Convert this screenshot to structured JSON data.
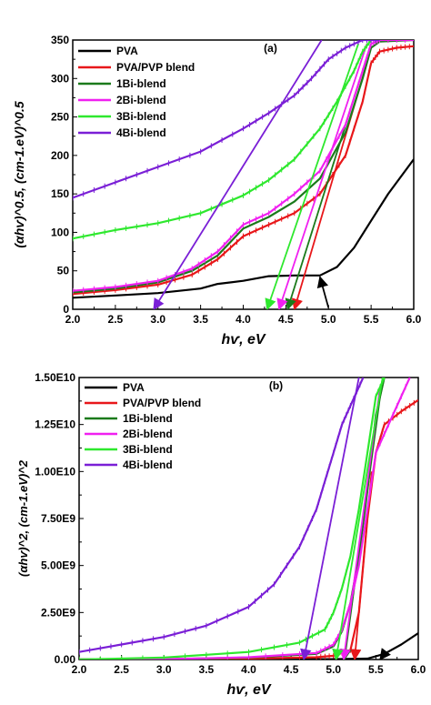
{
  "chart_data": [
    {
      "type": "line",
      "panel_label": "(a)",
      "xlabel": "hѵ, eV",
      "ylabel": "(αhѵ)^0.5, (cm-1.eV)^0.5",
      "xlim": [
        2.0,
        6.0
      ],
      "ylim": [
        0,
        350
      ],
      "xticks": [
        "2.0",
        "2.5",
        "3.0",
        "3.5",
        "4.0",
        "4.5",
        "5.0",
        "5.5",
        "6.0"
      ],
      "yticks": [
        "0",
        "50",
        "100",
        "150",
        "200",
        "250",
        "300",
        "350"
      ],
      "legend_position": "top-left",
      "series": [
        {
          "name": "PVA",
          "color": "#000000",
          "marker": "none",
          "x": [
            2.0,
            2.5,
            3.0,
            3.5,
            3.7,
            4.0,
            4.3,
            4.6,
            4.9,
            5.1,
            5.3,
            5.5,
            5.7,
            6.0
          ],
          "y": [
            15,
            18,
            21,
            27,
            33,
            37,
            43,
            44,
            44,
            55,
            80,
            115,
            150,
            195
          ],
          "fit_x": [
            4.9,
            5.0
          ],
          "fit_y": [
            42,
            2
          ]
        },
        {
          "name": "PVA/PVP blend",
          "color": "#e8171a",
          "marker": "dash",
          "x": [
            2.0,
            2.5,
            3.0,
            3.4,
            3.7,
            4.0,
            4.3,
            4.6,
            4.9,
            5.2,
            5.4,
            5.5,
            5.6,
            5.8,
            6.0
          ],
          "y": [
            20,
            25,
            32,
            45,
            65,
            95,
            110,
            125,
            150,
            200,
            270,
            320,
            335,
            340,
            342
          ],
          "fit_x": [
            4.6,
            5.45
          ],
          "fit_y": [
            0,
            320
          ]
        },
        {
          "name": "1Bi-blend",
          "color": "#1b7a1b",
          "marker": "none",
          "x": [
            2.0,
            2.5,
            3.0,
            3.4,
            3.7,
            4.0,
            4.3,
            4.6,
            4.9,
            5.2,
            5.4,
            5.5,
            5.6,
            6.0
          ],
          "y": [
            22,
            27,
            35,
            50,
            70,
            105,
            120,
            140,
            170,
            230,
            300,
            340,
            348,
            350
          ],
          "fit_x": [
            4.52,
            5.5
          ],
          "fit_y": [
            0,
            345
          ]
        },
        {
          "name": "2Bi-blend",
          "color": "#f020f0",
          "marker": "dash",
          "x": [
            2.0,
            2.5,
            3.0,
            3.4,
            3.7,
            4.0,
            4.3,
            4.6,
            4.9,
            5.2,
            5.4,
            5.5,
            5.6,
            6.0
          ],
          "y": [
            24,
            29,
            37,
            53,
            75,
            110,
            125,
            150,
            180,
            240,
            310,
            345,
            350,
            350
          ],
          "fit_x": [
            4.42,
            5.45
          ],
          "fit_y": [
            0,
            345
          ]
        },
        {
          "name": "3Bi-blend",
          "color": "#2ee82e",
          "marker": "dash",
          "x": [
            2.0,
            2.5,
            3.0,
            3.5,
            4.0,
            4.3,
            4.6,
            4.9,
            5.1,
            5.3,
            5.4,
            5.5
          ],
          "y": [
            92,
            103,
            112,
            125,
            148,
            168,
            195,
            235,
            270,
            310,
            335,
            350
          ],
          "fit_x": [
            4.28,
            5.35
          ],
          "fit_y": [
            0,
            345
          ]
        },
        {
          "name": "4Bi-blend",
          "color": "#7a1fd6",
          "marker": "dash",
          "x": [
            2.0,
            2.5,
            3.0,
            3.5,
            4.0,
            4.3,
            4.6,
            4.8,
            5.0,
            5.2,
            5.4,
            5.6
          ],
          "y": [
            145,
            165,
            185,
            205,
            235,
            255,
            278,
            300,
            325,
            340,
            350,
            350
          ],
          "fit_x": [
            2.95,
            4.92
          ],
          "fit_y": [
            0,
            350
          ]
        }
      ]
    },
    {
      "type": "line",
      "panel_label": "(b)",
      "xlabel": "hѵ, eV",
      "ylabel": "(αhѵ)^2, (cm-1.eV)^2",
      "xlim": [
        2.0,
        6.0
      ],
      "ylim": [
        0,
        15000000000.0
      ],
      "xticks": [
        "2.0",
        "2.5",
        "3.0",
        "3.5",
        "4.0",
        "4.5",
        "5.0",
        "5.5",
        "6.0"
      ],
      "yticks": [
        "0.00",
        "2.50E9",
        "5.00E9",
        "7.50E9",
        "1.00E10",
        "1.25E10",
        "1.50E10"
      ],
      "legend_position": "top-left",
      "series": [
        {
          "name": "PVA",
          "color": "#000000",
          "marker": "none",
          "x": [
            2.0,
            3.0,
            4.0,
            5.0,
            5.4,
            5.6,
            5.8,
            6.0
          ],
          "y": [
            0,
            0,
            5000000.0,
            20000000.0,
            50000000.0,
            300000000.0,
            800000000.0,
            1400000000.0
          ],
          "fit_x": [
            5.55,
            5.6
          ],
          "fit_y": [
            0,
            300000000.0
          ]
        },
        {
          "name": "PVA/PVP blend",
          "color": "#e8171a",
          "marker": "dash",
          "x": [
            2.0,
            3.0,
            4.0,
            4.8,
            5.0,
            5.2,
            5.3,
            5.4,
            5.5,
            5.6,
            5.8,
            6.0
          ],
          "y": [
            0,
            10000000.0,
            50000000.0,
            120000000.0,
            200000000.0,
            500000000.0,
            2500000000.0,
            7500000000.0,
            11000000000.0,
            12500000000.0,
            13200000000.0,
            13800000000.0
          ],
          "fit_x": [
            5.25,
            5.45
          ],
          "fit_y": [
            0,
            10000000000.0
          ]
        },
        {
          "name": "1Bi-blend",
          "color": "#1b7a1b",
          "marker": "none",
          "x": [
            2.0,
            3.0,
            4.0,
            4.8,
            5.0,
            5.1,
            5.2,
            5.3,
            5.4,
            5.5,
            5.6
          ],
          "y": [
            0,
            20000000.0,
            100000000.0,
            300000000.0,
            700000000.0,
            1500000000.0,
            3000000000.0,
            5500000000.0,
            9000000000.0,
            13000000000.0,
            15000000000.0
          ],
          "fit_x": [
            5.13,
            5.58
          ],
          "fit_y": [
            0,
            15000000000.0
          ]
        },
        {
          "name": "2Bi-blend",
          "color": "#f020f0",
          "marker": "dash",
          "x": [
            2.0,
            3.0,
            4.0,
            4.8,
            5.0,
            5.1,
            5.2,
            5.3,
            5.4,
            5.5,
            5.7,
            5.9
          ],
          "y": [
            0,
            20000000.0,
            120000000.0,
            350000000.0,
            800000000.0,
            1600000000.0,
            3000000000.0,
            5000000000.0,
            8000000000.0,
            11000000000.0,
            13000000000.0,
            15000000000.0
          ],
          "fit_x": [
            5.12,
            5.55
          ],
          "fit_y": [
            0,
            14500000000.0
          ]
        },
        {
          "name": "3Bi-blend",
          "color": "#2ee82e",
          "marker": "dash",
          "x": [
            2.0,
            3.0,
            4.0,
            4.6,
            4.9,
            5.0,
            5.1,
            5.2,
            5.3,
            5.4,
            5.5,
            5.6
          ],
          "y": [
            0,
            100000000.0,
            400000000.0,
            900000000.0,
            1600000000.0,
            2500000000.0,
            3800000000.0,
            5500000000.0,
            8000000000.0,
            11000000000.0,
            14000000000.0,
            15000000000.0
          ],
          "fit_x": [
            5.03,
            5.58
          ],
          "fit_y": [
            0,
            15000000000.0
          ]
        },
        {
          "name": "4Bi-blend",
          "color": "#7a1fd6",
          "marker": "dash",
          "x": [
            2.0,
            2.5,
            3.0,
            3.5,
            4.0,
            4.3,
            4.6,
            4.8,
            4.9,
            5.0,
            5.1,
            5.2,
            5.35
          ],
          "y": [
            400000000.0,
            800000000.0,
            1200000000.0,
            1800000000.0,
            2800000000.0,
            4000000000.0,
            6000000000.0,
            8000000000.0,
            9500000000.0,
            11000000000.0,
            12500000000.0,
            13500000000.0,
            15000000000.0
          ],
          "fit_x": [
            4.65,
            5.3
          ],
          "fit_y": [
            0,
            15000000000.0
          ]
        }
      ]
    }
  ]
}
